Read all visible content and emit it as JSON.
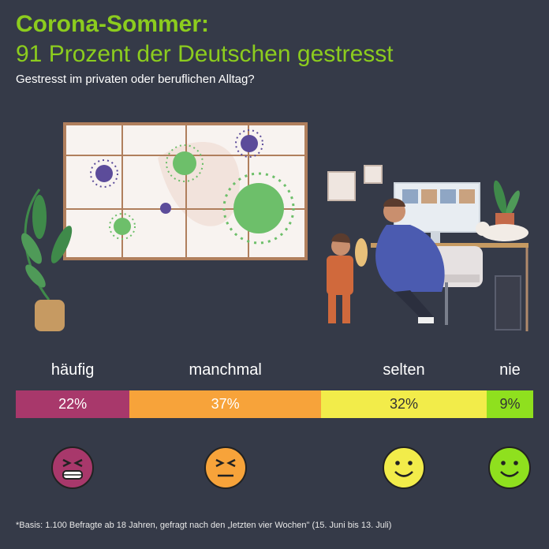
{
  "header": {
    "title_line1": "Corona-Sommer:",
    "title_line2": "91 Prozent der Deutschen gestresst",
    "subtitle": "Gestresst im privaten oder beruflichen Alltag?"
  },
  "chart_data": {
    "type": "bar",
    "orientation": "stacked-horizontal",
    "categories": [
      "häufig",
      "manchmal",
      "selten",
      "nie"
    ],
    "values": [
      22,
      37,
      32,
      9
    ],
    "value_labels": [
      "22%",
      "37%",
      "32%",
      "9%"
    ],
    "unit": "%",
    "colors": [
      "#a8386b",
      "#f7a33a",
      "#f2ec4a",
      "#8fe01e"
    ],
    "label_colors": [
      "#ffffff",
      "#ffffff",
      "#333333",
      "#333333"
    ],
    "faces": [
      "stressed-face-icon",
      "annoyed-face-icon",
      "smiley-face-icon",
      "smiley-face-icon"
    ]
  },
  "footnote": "*Basis: 1.100 Befragte ab 18 Jahren, gefragt nach den „letzten vier Wochen\" (15. Juni bis 13. Juli)"
}
